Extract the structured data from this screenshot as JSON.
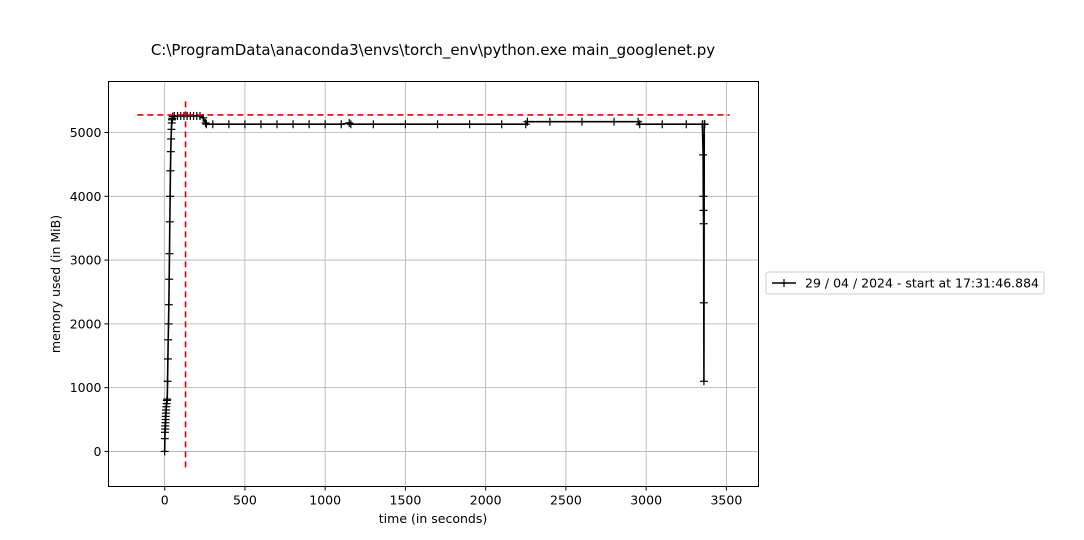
{
  "chart_data": {
    "type": "line",
    "title": "C:\\ProgramData\\anaconda3\\envs\\torch_env\\python.exe main_googlenet.py",
    "xlabel": "time (in seconds)",
    "ylabel": "memory used (in MiB)",
    "xlim": [
      -350,
      3700
    ],
    "ylim": [
      -550,
      5800
    ],
    "xticks": [
      0,
      500,
      1000,
      1500,
      2000,
      2500,
      3000,
      3500
    ],
    "yticks": [
      0,
      1000,
      2000,
      3000,
      4000,
      5000
    ],
    "grid": true,
    "legend_position": "outside-right",
    "series": [
      {
        "name": "29 / 04 / 2024 - start at 17:31:46.884",
        "color": "#000000",
        "marker": "+",
        "x": [
          0,
          1,
          2,
          3,
          4,
          5,
          6,
          7,
          8,
          9,
          10,
          12,
          14,
          16,
          18,
          20,
          22,
          24,
          26,
          28,
          30,
          32,
          34,
          36,
          38,
          40,
          42,
          44,
          46,
          48,
          50,
          60,
          80,
          100,
          120,
          140,
          160,
          180,
          200,
          220,
          240,
          255,
          260,
          300,
          400,
          500,
          600,
          700,
          800,
          900,
          1000,
          1100,
          1150,
          1160,
          1300,
          1500,
          1700,
          1900,
          2100,
          2250,
          2260,
          2400,
          2600,
          2800,
          2950,
          2960,
          3100,
          3250,
          3350,
          3355,
          3356,
          3357,
          3358,
          3359,
          3360,
          3362,
          3365
        ],
        "y": [
          0,
          200,
          300,
          400,
          350,
          450,
          500,
          550,
          600,
          650,
          700,
          750,
          800,
          820,
          1100,
          1450,
          1750,
          2000,
          2300,
          2700,
          3100,
          3600,
          4000,
          4400,
          4700,
          4900,
          5050,
          5150,
          5200,
          5220,
          5250,
          5260,
          5260,
          5260,
          5260,
          5260,
          5260,
          5260,
          5260,
          5260,
          5230,
          5150,
          5130,
          5130,
          5130,
          5130,
          5130,
          5130,
          5130,
          5130,
          5130,
          5130,
          5150,
          5130,
          5130,
          5130,
          5130,
          5130,
          5130,
          5130,
          5170,
          5170,
          5170,
          5170,
          5170,
          5130,
          5130,
          5130,
          5130,
          4650,
          4000,
          3780,
          3570,
          2330,
          1100,
          5130,
          5130
        ],
        "vline_x": 130,
        "hline_y": 5275,
        "hline_xrange": [
          -170,
          3520
        ],
        "vline_yrange": [
          -250,
          5530
        ]
      }
    ]
  }
}
